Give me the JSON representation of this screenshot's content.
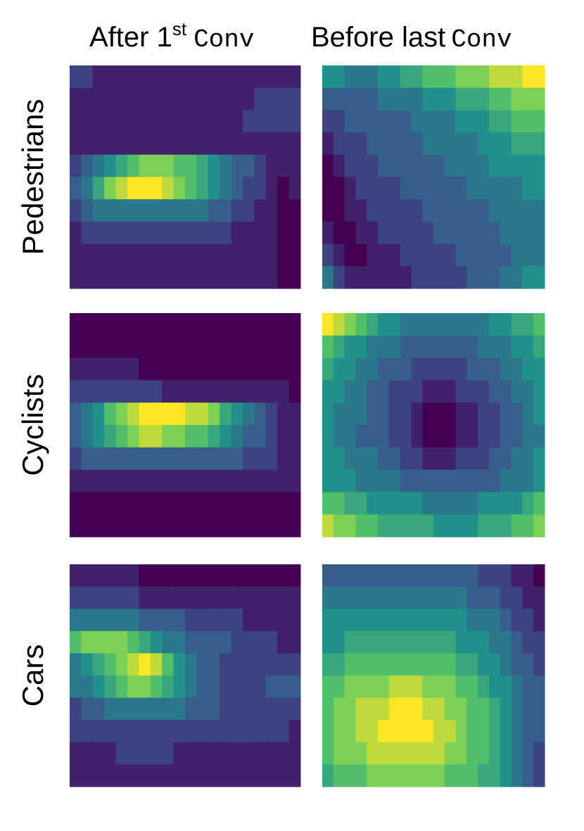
{
  "column_titles": [
    {
      "text": "After 1",
      "sup": "st",
      "code": "Conv"
    },
    {
      "text": "Before last",
      "code": "Conv"
    }
  ],
  "row_labels": [
    "Pedestrians",
    "Cyclists",
    "Cars"
  ],
  "chart_data": [
    {
      "type": "heatmap",
      "colormap": "viridis",
      "vlim": [
        0,
        10
      ],
      "values": [
        [
          2,
          2,
          1,
          1,
          1,
          1,
          1,
          1,
          1,
          1,
          1,
          1,
          1,
          1,
          1,
          1,
          1,
          1,
          1,
          1
        ],
        [
          1,
          1,
          1,
          1,
          1,
          1,
          1,
          1,
          1,
          1,
          1,
          1,
          1,
          1,
          1,
          1,
          2,
          2,
          2,
          2
        ],
        [
          1,
          1,
          1,
          1,
          1,
          1,
          1,
          1,
          1,
          1,
          1,
          1,
          1,
          1,
          1,
          2,
          2,
          2,
          2,
          2
        ],
        [
          1,
          1,
          1,
          1,
          1,
          1,
          1,
          1,
          1,
          1,
          1,
          1,
          1,
          1,
          1,
          1,
          1,
          1,
          1,
          1
        ],
        [
          2,
          3,
          4,
          5,
          6,
          7,
          8,
          8,
          8,
          7,
          7,
          6,
          5,
          4,
          3,
          3,
          2,
          1,
          1,
          1
        ],
        [
          3,
          4,
          6,
          8,
          9,
          10,
          10,
          10,
          9,
          8,
          7,
          6,
          5,
          4,
          3,
          2,
          2,
          1,
          0,
          1
        ],
        [
          2,
          3,
          4,
          4,
          4,
          4,
          4,
          4,
          4,
          4,
          4,
          4,
          3,
          3,
          2,
          2,
          1,
          1,
          0,
          0
        ],
        [
          1,
          2,
          2,
          2,
          2,
          2,
          2,
          2,
          2,
          2,
          2,
          2,
          2,
          2,
          1,
          1,
          1,
          1,
          0,
          0
        ],
        [
          1,
          1,
          1,
          1,
          1,
          1,
          1,
          1,
          1,
          1,
          1,
          1,
          1,
          1,
          1,
          1,
          1,
          1,
          0,
          0
        ],
        [
          1,
          1,
          1,
          1,
          1,
          1,
          1,
          1,
          1,
          1,
          1,
          1,
          1,
          1,
          1,
          1,
          1,
          1,
          0,
          0
        ]
      ]
    },
    {
      "type": "heatmap",
      "colormap": "viridis",
      "vlim": [
        0,
        10
      ],
      "values": [
        [
          5,
          5,
          4,
          4,
          4,
          5,
          5,
          6,
          6,
          7,
          7,
          7,
          8,
          8,
          8,
          9,
          9,
          9,
          10,
          10
        ],
        [
          3,
          3,
          3,
          3,
          3,
          4,
          4,
          4,
          4,
          5,
          5,
          5,
          6,
          6,
          6,
          7,
          7,
          8,
          8,
          8
        ],
        [
          2,
          2,
          3,
          3,
          3,
          3,
          3,
          3,
          4,
          4,
          4,
          4,
          5,
          5,
          5,
          6,
          6,
          7,
          7,
          7
        ],
        [
          1,
          2,
          2,
          2,
          3,
          3,
          3,
          3,
          3,
          4,
          4,
          4,
          4,
          4,
          5,
          5,
          5,
          6,
          6,
          6
        ],
        [
          0,
          1,
          2,
          2,
          2,
          3,
          3,
          3,
          3,
          3,
          3,
          4,
          4,
          4,
          4,
          5,
          5,
          5,
          5,
          5
        ],
        [
          0,
          0,
          1,
          2,
          2,
          2,
          2,
          3,
          3,
          3,
          3,
          3,
          3,
          4,
          4,
          4,
          4,
          4,
          5,
          5
        ],
        [
          0,
          0,
          1,
          1,
          2,
          2,
          2,
          2,
          2,
          3,
          3,
          3,
          3,
          3,
          3,
          4,
          4,
          4,
          4,
          4
        ],
        [
          1,
          0,
          0,
          1,
          1,
          2,
          2,
          2,
          2,
          2,
          3,
          3,
          3,
          3,
          3,
          3,
          4,
          4,
          4,
          4
        ],
        [
          2,
          1,
          0,
          0,
          1,
          1,
          1,
          2,
          2,
          2,
          2,
          2,
          3,
          3,
          3,
          3,
          3,
          4,
          4,
          4
        ],
        [
          4,
          2,
          1,
          1,
          1,
          1,
          1,
          1,
          2,
          2,
          2,
          2,
          2,
          3,
          3,
          3,
          4,
          4,
          5,
          5
        ]
      ]
    },
    {
      "type": "heatmap",
      "colormap": "viridis",
      "vlim": [
        0,
        10
      ],
      "values": [
        [
          0,
          0,
          0,
          0,
          0,
          0,
          0,
          0,
          0,
          0,
          0,
          0,
          0,
          0,
          0,
          0,
          0,
          0,
          0,
          0
        ],
        [
          0,
          0,
          0,
          0,
          0,
          0,
          0,
          0,
          0,
          0,
          0,
          0,
          0,
          0,
          0,
          0,
          0,
          0,
          0,
          0
        ],
        [
          1,
          1,
          1,
          1,
          1,
          1,
          0,
          0,
          0,
          0,
          0,
          0,
          0,
          0,
          0,
          0,
          0,
          0,
          0,
          0
        ],
        [
          2,
          2,
          2,
          2,
          2,
          2,
          2,
          2,
          1,
          1,
          1,
          1,
          1,
          1,
          1,
          1,
          1,
          1,
          1,
          0
        ],
        [
          3,
          4,
          5,
          7,
          8,
          9,
          10,
          10,
          10,
          10,
          9,
          9,
          8,
          6,
          5,
          4,
          3,
          2,
          1,
          1
        ],
        [
          3,
          4,
          5,
          6,
          7,
          8,
          9,
          9,
          8,
          8,
          7,
          7,
          6,
          5,
          4,
          3,
          3,
          2,
          1,
          1
        ],
        [
          2,
          3,
          3,
          3,
          3,
          3,
          3,
          3,
          3,
          3,
          3,
          3,
          3,
          3,
          3,
          2,
          2,
          2,
          1,
          1
        ],
        [
          1,
          1,
          1,
          1,
          1,
          1,
          1,
          1,
          1,
          1,
          1,
          1,
          1,
          1,
          1,
          1,
          1,
          1,
          1,
          1
        ],
        [
          0,
          0,
          0,
          0,
          0,
          0,
          0,
          0,
          0,
          0,
          0,
          0,
          0,
          0,
          0,
          0,
          0,
          0,
          0,
          0
        ],
        [
          0,
          0,
          0,
          0,
          0,
          0,
          0,
          0,
          0,
          0,
          0,
          0,
          0,
          0,
          0,
          0,
          0,
          0,
          0,
          0
        ]
      ]
    },
    {
      "type": "heatmap",
      "colormap": "viridis",
      "vlim": [
        0,
        10
      ],
      "values": [
        [
          10,
          9,
          8,
          7,
          6,
          5,
          5,
          4,
          4,
          4,
          4,
          4,
          4,
          4,
          4,
          5,
          5,
          6,
          6,
          7
        ],
        [
          7,
          6,
          5,
          5,
          4,
          4,
          4,
          3,
          3,
          3,
          3,
          3,
          3,
          3,
          4,
          4,
          4,
          5,
          5,
          6
        ],
        [
          6,
          5,
          5,
          4,
          4,
          3,
          3,
          3,
          2,
          2,
          2,
          2,
          2,
          3,
          3,
          3,
          4,
          4,
          5,
          5
        ],
        [
          5,
          5,
          4,
          4,
          3,
          3,
          2,
          2,
          2,
          1,
          1,
          1,
          2,
          2,
          2,
          3,
          3,
          4,
          4,
          5
        ],
        [
          5,
          4,
          4,
          4,
          3,
          3,
          2,
          2,
          1,
          0,
          0,
          0,
          1,
          1,
          2,
          2,
          3,
          3,
          4,
          5
        ],
        [
          5,
          4,
          4,
          3,
          3,
          3,
          2,
          2,
          1,
          0,
          0,
          0,
          1,
          1,
          2,
          2,
          3,
          3,
          4,
          4
        ],
        [
          5,
          5,
          4,
          4,
          4,
          3,
          3,
          2,
          2,
          1,
          1,
          1,
          2,
          2,
          2,
          3,
          3,
          4,
          4,
          5
        ],
        [
          5,
          5,
          5,
          4,
          4,
          4,
          4,
          3,
          3,
          3,
          3,
          3,
          3,
          3,
          3,
          3,
          4,
          4,
          4,
          5
        ],
        [
          7,
          7,
          6,
          6,
          5,
          5,
          5,
          5,
          5,
          4,
          4,
          4,
          4,
          4,
          5,
          5,
          5,
          5,
          6,
          7
        ],
        [
          9,
          8,
          8,
          7,
          7,
          6,
          6,
          6,
          6,
          6,
          5,
          5,
          5,
          5,
          6,
          6,
          6,
          7,
          7,
          8
        ]
      ]
    },
    {
      "type": "heatmap",
      "colormap": "viridis",
      "vlim": [
        0,
        10
      ],
      "values": [
        [
          1,
          1,
          1,
          1,
          1,
          1,
          0,
          0,
          0,
          0,
          0,
          0,
          0,
          0,
          0,
          0,
          0,
          0,
          0,
          0
        ],
        [
          2,
          2,
          2,
          2,
          2,
          2,
          1,
          1,
          1,
          1,
          1,
          1,
          1,
          1,
          1,
          1,
          1,
          1,
          1,
          1
        ],
        [
          4,
          4,
          4,
          4,
          4,
          4,
          3,
          3,
          3,
          3,
          2,
          2,
          2,
          2,
          2,
          1,
          1,
          1,
          1,
          1
        ],
        [
          7,
          8,
          8,
          8,
          8,
          7,
          6,
          5,
          4,
          4,
          3,
          3,
          3,
          3,
          2,
          2,
          2,
          2,
          1,
          1
        ],
        [
          4,
          5,
          6,
          7,
          8,
          9,
          10,
          9,
          7,
          5,
          4,
          3,
          3,
          2,
          2,
          2,
          2,
          2,
          2,
          2
        ],
        [
          4,
          4,
          5,
          6,
          7,
          8,
          8,
          7,
          6,
          5,
          4,
          3,
          3,
          2,
          2,
          2,
          2,
          3,
          3,
          3
        ],
        [
          2,
          3,
          3,
          4,
          4,
          4,
          4,
          4,
          4,
          4,
          3,
          3,
          3,
          2,
          2,
          2,
          2,
          2,
          2,
          2
        ],
        [
          2,
          2,
          2,
          2,
          2,
          2,
          2,
          2,
          2,
          2,
          2,
          2,
          2,
          2,
          2,
          2,
          2,
          2,
          2,
          1
        ],
        [
          1,
          1,
          1,
          1,
          2,
          2,
          2,
          2,
          2,
          1,
          1,
          1,
          1,
          1,
          1,
          1,
          1,
          1,
          1,
          1
        ],
        [
          1,
          1,
          1,
          1,
          1,
          1,
          1,
          1,
          1,
          1,
          1,
          1,
          1,
          1,
          1,
          1,
          1,
          1,
          1,
          1
        ]
      ]
    },
    {
      "type": "heatmap",
      "colormap": "viridis",
      "vlim": [
        0,
        10
      ],
      "values": [
        [
          3,
          3,
          3,
          3,
          3,
          3,
          3,
          3,
          3,
          3,
          3,
          3,
          3,
          3,
          2,
          2,
          2,
          1,
          1,
          0
        ],
        [
          4,
          4,
          4,
          4,
          4,
          4,
          4,
          4,
          4,
          4,
          4,
          4,
          4,
          3,
          3,
          3,
          2,
          2,
          1,
          1
        ],
        [
          5,
          5,
          5,
          5,
          5,
          5,
          5,
          5,
          5,
          5,
          5,
          5,
          5,
          4,
          4,
          4,
          3,
          2,
          2,
          1
        ],
        [
          5,
          5,
          6,
          6,
          6,
          6,
          6,
          6,
          6,
          6,
          6,
          6,
          5,
          5,
          5,
          4,
          4,
          3,
          2,
          2
        ],
        [
          6,
          6,
          7,
          7,
          7,
          7,
          7,
          7,
          7,
          7,
          7,
          7,
          6,
          6,
          5,
          5,
          4,
          3,
          3,
          2
        ],
        [
          7,
          7,
          8,
          8,
          8,
          8,
          9,
          9,
          9,
          8,
          8,
          8,
          7,
          7,
          6,
          5,
          5,
          4,
          3,
          3
        ],
        [
          7,
          8,
          8,
          9,
          9,
          9,
          10,
          10,
          10,
          9,
          9,
          8,
          8,
          7,
          7,
          6,
          5,
          4,
          3,
          3
        ],
        [
          7,
          8,
          8,
          9,
          9,
          10,
          10,
          10,
          10,
          10,
          9,
          9,
          8,
          7,
          7,
          6,
          5,
          4,
          3,
          3
        ],
        [
          7,
          8,
          8,
          8,
          9,
          9,
          9,
          9,
          9,
          9,
          9,
          8,
          8,
          7,
          7,
          6,
          5,
          4,
          3,
          2
        ],
        [
          6,
          7,
          7,
          7,
          8,
          8,
          8,
          8,
          8,
          8,
          8,
          7,
          7,
          7,
          6,
          6,
          5,
          4,
          3,
          2
        ]
      ]
    }
  ]
}
